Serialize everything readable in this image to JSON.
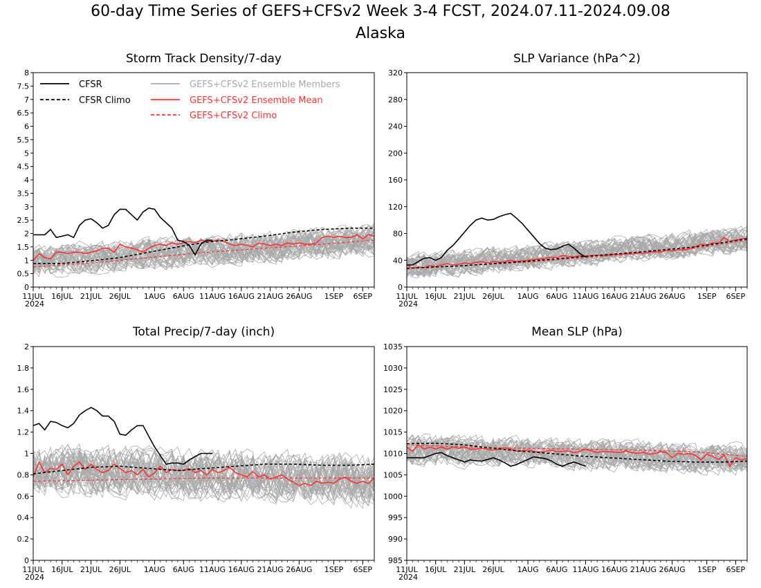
{
  "header": {
    "title": "60-day Time Series of GEFS+CFSv2 Week 3-4 FCST, 2024.07.11-2024.09.08",
    "subtitle": "Alaska"
  },
  "colors": {
    "cfsr": "#000000",
    "members": "#a9a9a9",
    "ens_mean": "#ff3030",
    "gefs_climo": "#ff3030"
  },
  "legend": {
    "cfsr": "CFSR",
    "cfsr_climo": "CFSR Climo",
    "members": "GEFS+CFSv2 Ensemble Members",
    "ens_mean": "GEFS+CFSv2 Ensemble Mean",
    "gefs_climo": "GEFS+CFSv2 Climo"
  },
  "x_axis": {
    "ticks": [
      "11JUL",
      "16JUL",
      "21JUL",
      "26JUL",
      "1AUG",
      "6AUG",
      "11AUG",
      "16AUG",
      "21AUG",
      "26AUG",
      "1SEP",
      "6SEP"
    ],
    "tick_days": [
      0,
      5,
      10,
      15,
      21,
      26,
      31,
      36,
      41,
      46,
      52,
      57
    ],
    "year_label": "2024",
    "n_days": 60
  },
  "chart_data": [
    {
      "type": "line",
      "title": "Storm Track Density/7-day",
      "ylim": [
        0,
        8
      ],
      "yticks": [
        "0",
        "0.5",
        "1",
        "1.5",
        "2",
        "2.5",
        "3",
        "3.5",
        "4",
        "4.5",
        "5",
        "5.5",
        "6",
        "6.5",
        "7",
        "7.5",
        "8"
      ],
      "legend": "top-left",
      "members": {
        "count": 40,
        "mean_start": 0.95,
        "mean_end": 1.75,
        "spread": 0.75
      },
      "series": [
        {
          "name": "CFSR",
          "style": "solid",
          "x": [
            0,
            1,
            2,
            3,
            4,
            5,
            6,
            7,
            8,
            9,
            10,
            11,
            12,
            13,
            14,
            15,
            16,
            17,
            18,
            19,
            20,
            21,
            22,
            23,
            24,
            25,
            26,
            27,
            28,
            29,
            30,
            31
          ],
          "values": [
            1.95,
            1.95,
            1.95,
            2.15,
            1.85,
            1.9,
            1.95,
            1.85,
            2.3,
            2.5,
            2.55,
            2.4,
            2.2,
            2.3,
            2.7,
            2.9,
            2.9,
            2.7,
            2.5,
            2.8,
            2.95,
            2.9,
            2.6,
            2.4,
            2.2,
            1.75,
            1.7,
            1.55,
            1.2,
            1.6,
            1.75,
            1.75
          ]
        },
        {
          "name": "CFSR Climo",
          "style": "dashed",
          "x": [
            0,
            5,
            10,
            15,
            20,
            25,
            30,
            35,
            40,
            45,
            50,
            55,
            59
          ],
          "values": [
            0.88,
            0.88,
            0.98,
            1.1,
            1.3,
            1.5,
            1.68,
            1.78,
            1.9,
            2.05,
            2.15,
            2.2,
            2.2
          ]
        },
        {
          "name": "GEFS+CFSv2 Ensemble Mean",
          "style": "solid",
          "values": [
            1.0,
            1.25,
            1.1,
            1.05,
            1.3,
            1.3,
            1.25,
            1.3,
            1.3,
            1.25,
            1.3,
            1.35,
            1.45,
            1.45,
            1.3,
            1.6,
            1.5,
            1.45,
            1.4,
            1.3,
            1.45,
            1.55,
            1.6,
            1.55,
            1.65,
            1.6,
            1.65,
            1.7,
            1.65,
            1.75,
            1.7,
            1.7,
            1.75,
            1.7,
            1.6,
            1.55,
            1.6,
            1.55,
            1.5,
            1.65,
            1.6,
            1.55,
            1.6,
            1.55,
            1.65,
            1.6,
            1.65,
            1.6,
            1.6,
            1.65,
            1.85,
            1.9,
            1.85,
            1.9,
            1.85,
            1.85,
            1.95,
            1.8,
            1.95,
            1.9
          ]
        },
        {
          "name": "GEFS+CFSv2 Climo",
          "style": "dashed",
          "x": [
            0,
            10,
            20,
            30,
            40,
            50,
            59
          ],
          "values": [
            0.75,
            0.9,
            1.1,
            1.3,
            1.45,
            1.6,
            1.75
          ]
        }
      ]
    },
    {
      "type": "line",
      "title": "SLP Variance (hPa^2)",
      "ylim": [
        0,
        320
      ],
      "yticks": [
        "0",
        "40",
        "80",
        "120",
        "160",
        "200",
        "240",
        "280",
        "320"
      ],
      "members": {
        "count": 40,
        "mean_start": 30,
        "mean_end": 70,
        "spread": 25
      },
      "series": [
        {
          "name": "CFSR",
          "style": "solid",
          "x": [
            0,
            1,
            2,
            3,
            4,
            5,
            6,
            7,
            8,
            9,
            10,
            11,
            12,
            13,
            14,
            15,
            16,
            17,
            18,
            19,
            20,
            21,
            22,
            23,
            24,
            25,
            26,
            27,
            28,
            29,
            30,
            31
          ],
          "values": [
            33,
            33,
            38,
            43,
            44,
            40,
            44,
            55,
            62,
            72,
            82,
            92,
            100,
            103,
            100,
            101,
            105,
            108,
            110,
            103,
            95,
            85,
            75,
            65,
            58,
            56,
            57,
            61,
            64,
            58,
            50,
            45
          ]
        },
        {
          "name": "CFSR Climo",
          "style": "dashed",
          "x": [
            0,
            10,
            20,
            30,
            40,
            50,
            59
          ],
          "values": [
            28,
            32,
            38,
            45,
            52,
            60,
            72
          ]
        },
        {
          "name": "GEFS+CFSv2 Ensemble Mean",
          "style": "solid",
          "values": [
            33,
            28,
            30,
            29,
            32,
            31,
            33,
            35,
            33,
            34,
            36,
            35,
            37,
            38,
            36,
            38,
            37,
            38,
            40,
            38,
            39,
            40,
            41,
            42,
            43,
            45,
            44,
            47,
            46,
            45,
            47,
            46,
            47,
            48,
            47,
            48,
            49,
            48,
            50,
            49,
            51,
            50,
            52,
            53,
            52,
            55,
            54,
            56,
            55,
            57,
            60,
            64,
            62,
            66,
            65,
            74,
            68,
            70,
            72,
            73
          ]
        },
        {
          "name": "GEFS+CFSv2 Climo",
          "style": "dashed",
          "x": [
            0,
            10,
            20,
            30,
            40,
            50,
            59
          ],
          "values": [
            28,
            32,
            37,
            43,
            50,
            58,
            70
          ]
        }
      ]
    },
    {
      "type": "line",
      "title": "Total Precip/7-day (inch)",
      "ylim": [
        0,
        2
      ],
      "yticks": [
        "0",
        "0.2",
        "0.4",
        "0.6",
        "0.8",
        "1",
        "1.2",
        "1.4",
        "1.6",
        "1.8",
        "2"
      ],
      "members": {
        "count": 40,
        "mean_start": 0.85,
        "mean_end": 0.75,
        "spread": 0.3
      },
      "series": [
        {
          "name": "CFSR",
          "style": "solid",
          "x": [
            0,
            1,
            2,
            3,
            4,
            5,
            6,
            7,
            8,
            9,
            10,
            11,
            12,
            13,
            14,
            15,
            16,
            17,
            18,
            19,
            20,
            21,
            22,
            23,
            24,
            25,
            26,
            27,
            28,
            29,
            30,
            31
          ],
          "values": [
            1.26,
            1.28,
            1.22,
            1.3,
            1.29,
            1.26,
            1.24,
            1.28,
            1.36,
            1.4,
            1.43,
            1.4,
            1.35,
            1.35,
            1.3,
            1.18,
            1.17,
            1.22,
            1.26,
            1.26,
            1.16,
            1.06,
            0.98,
            0.9,
            0.91,
            0.91,
            0.9,
            0.94,
            0.97,
            1.0,
            1.0,
            1.0
          ]
        },
        {
          "name": "CFSR Climo",
          "style": "dashed",
          "x": [
            0,
            5,
            10,
            15,
            20,
            25,
            30,
            35,
            40,
            45,
            50,
            55,
            59
          ],
          "values": [
            0.81,
            0.84,
            0.87,
            0.88,
            0.86,
            0.84,
            0.86,
            0.88,
            0.9,
            0.9,
            0.89,
            0.89,
            0.9
          ]
        },
        {
          "name": "GEFS+CFSv2 Ensemble Mean",
          "style": "solid",
          "values": [
            0.78,
            0.92,
            0.82,
            0.86,
            0.85,
            0.9,
            0.8,
            0.88,
            0.92,
            0.85,
            0.9,
            0.85,
            0.82,
            0.84,
            0.9,
            0.86,
            0.82,
            0.84,
            0.8,
            0.85,
            0.78,
            0.82,
            0.88,
            0.82,
            0.85,
            0.84,
            0.84,
            0.86,
            0.82,
            0.84,
            0.8,
            0.85,
            0.82,
            0.84,
            0.87,
            0.82,
            0.8,
            0.78,
            0.83,
            0.78,
            0.8,
            0.76,
            0.78,
            0.8,
            0.76,
            0.73,
            0.7,
            0.72,
            0.7,
            0.74,
            0.72,
            0.73,
            0.72,
            0.76,
            0.78,
            0.74,
            0.72,
            0.74,
            0.72,
            0.77
          ]
        },
        {
          "name": "GEFS+CFSv2 Climo",
          "style": "dashed",
          "x": [
            0,
            10,
            20,
            30,
            40,
            50,
            59
          ],
          "values": [
            0.74,
            0.75,
            0.76,
            0.77,
            0.77,
            0.77,
            0.77
          ]
        }
      ]
    },
    {
      "type": "line",
      "title": "Mean SLP (hPa)",
      "ylim": [
        985,
        1035
      ],
      "yticks": [
        "985",
        "990",
        "995",
        "1000",
        "1005",
        "1010",
        "1015",
        "1020",
        "1025",
        "1030",
        "1035"
      ],
      "members": {
        "count": 40,
        "mean_start": 1011,
        "mean_end": 1008.5,
        "spread": 4.5
      },
      "series": [
        {
          "name": "CFSR",
          "style": "solid",
          "x": [
            0,
            1,
            2,
            3,
            4,
            5,
            6,
            7,
            8,
            9,
            10,
            11,
            12,
            13,
            14,
            15,
            16,
            17,
            18,
            19,
            20,
            21,
            22,
            23,
            24,
            25,
            26,
            27,
            28,
            29,
            30,
            31
          ],
          "values": [
            1009,
            1009,
            1009,
            1009,
            1009.5,
            1010,
            1010.2,
            1009.5,
            1009,
            1008.5,
            1008,
            1008.5,
            1008.3,
            1008.2,
            1008.6,
            1009,
            1008.5,
            1007.8,
            1007,
            1007.4,
            1008,
            1008.6,
            1009.2,
            1009,
            1008.8,
            1008.3,
            1007.5,
            1007,
            1007.6,
            1008,
            1007.5,
            1007
          ]
        },
        {
          "name": "CFSR Climo",
          "style": "dashed",
          "x": [
            0,
            5,
            10,
            15,
            20,
            25,
            30,
            35,
            40,
            45,
            50,
            55,
            59
          ],
          "values": [
            1012.3,
            1012.4,
            1012,
            1011.2,
            1010.5,
            1010,
            1009.4,
            1009,
            1008.6,
            1008.2,
            1008,
            1008,
            1008.2
          ]
        },
        {
          "name": "GEFS+CFSv2 Ensemble Mean",
          "style": "solid",
          "values": [
            1011.5,
            1010.5,
            1012,
            1011,
            1011.5,
            1011,
            1011.5,
            1011,
            1011.5,
            1011.2,
            1011.5,
            1011,
            1011,
            1011.2,
            1011,
            1010.8,
            1011,
            1011.3,
            1011,
            1010.5,
            1010.6,
            1010.8,
            1010.5,
            1010.3,
            1010.5,
            1010.8,
            1010.4,
            1010.5,
            1010.6,
            1010.2,
            1010.5,
            1011,
            1010.6,
            1010.2,
            1010.5,
            1010.4,
            1010.3,
            1010.2,
            1010.6,
            1010.2,
            1010,
            1010.3,
            1009.8,
            1010,
            1010.4,
            1010.2,
            1009,
            1010,
            1009.8,
            1010,
            1009.6,
            1008.5,
            1009.8,
            1009.3,
            1008.6,
            1009.6,
            1007,
            1009,
            1008.5,
            1008.8
          ]
        },
        {
          "name": "GEFS+CFSv2 Climo",
          "style": "dashed",
          "x": [
            0,
            10,
            20,
            30,
            40,
            50,
            59
          ],
          "values": [
            1012,
            1011.5,
            1011.2,
            1011,
            1010.8,
            1010.4,
            1009.3
          ]
        }
      ]
    }
  ]
}
